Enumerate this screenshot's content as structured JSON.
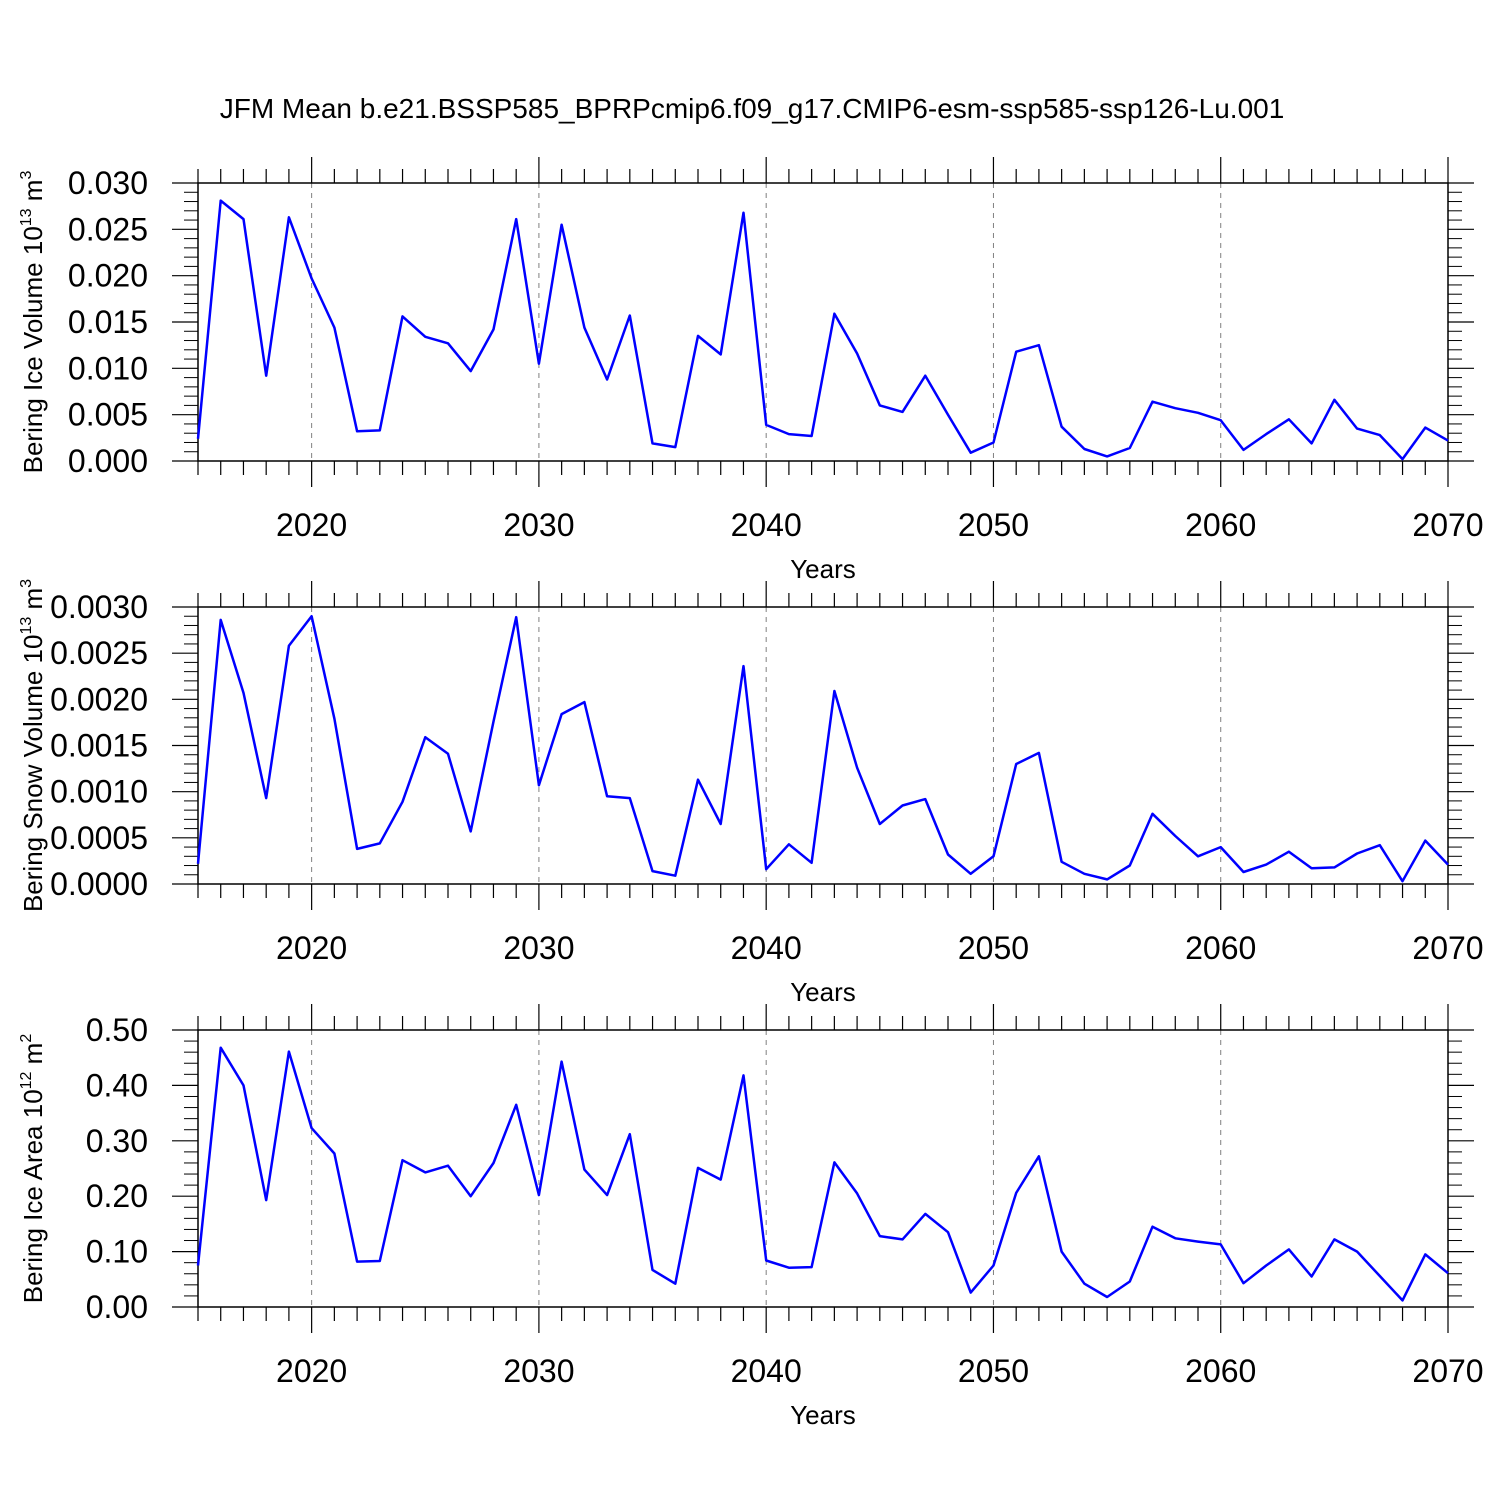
{
  "title": "JFM Mean b.e21.BSSP585_BPRPcmip6.f09_g17.CMIP6-esm-ssp585-ssp126-Lu.001",
  "colors": {
    "line": "#0000ff",
    "axis": "#000000",
    "grid": "#808080"
  },
  "chart_data": [
    {
      "type": "line",
      "title": "JFM Mean b.e21.BSSP585_BPRPcmip6.f09_g17.CMIP6-esm-ssp585-ssp126-Lu.001",
      "ylabel": {
        "main": "Bering Ice Volume 10",
        "sup": "13",
        "unit": " m",
        "unit_sup": "3"
      },
      "xlabel": "Years",
      "xlim": [
        2015,
        2070
      ],
      "ylim": [
        0,
        0.03
      ],
      "yticks": [
        "0.000",
        "0.005",
        "0.010",
        "0.015",
        "0.020",
        "0.025",
        "0.030"
      ],
      "xticks": [
        "2020",
        "2030",
        "2040",
        "2050",
        "2060",
        "2070"
      ],
      "grid": "vertical dashed at major x ticks",
      "x": [
        2015,
        2016,
        2017,
        2018,
        2019,
        2020,
        2021,
        2022,
        2023,
        2024,
        2025,
        2026,
        2027,
        2028,
        2029,
        2030,
        2031,
        2032,
        2033,
        2034,
        2035,
        2036,
        2037,
        2038,
        2039,
        2040,
        2041,
        2042,
        2043,
        2044,
        2045,
        2046,
        2047,
        2048,
        2049,
        2050,
        2051,
        2052,
        2053,
        2054,
        2055,
        2056,
        2057,
        2058,
        2059,
        2060,
        2061,
        2062,
        2063,
        2064,
        2065,
        2066,
        2067,
        2068,
        2069,
        2070
      ],
      "values": [
        0.0024,
        0.0281,
        0.0261,
        0.0092,
        0.0263,
        0.0197,
        0.0144,
        0.0032,
        0.0033,
        0.0156,
        0.0134,
        0.0127,
        0.0097,
        0.0142,
        0.0261,
        0.0105,
        0.0255,
        0.0144,
        0.0088,
        0.0157,
        0.0019,
        0.0015,
        0.0135,
        0.0115,
        0.0268,
        0.0039,
        0.0029,
        0.0027,
        0.0159,
        0.0116,
        0.006,
        0.0053,
        0.0092,
        0.005,
        0.0009,
        0.002,
        0.0118,
        0.0125,
        0.0037,
        0.0013,
        0.0005,
        0.0014,
        0.0064,
        0.0057,
        0.0052,
        0.0044,
        0.0012,
        0.0029,
        0.0045,
        0.0019,
        0.0066,
        0.0035,
        0.0028,
        0.0002,
        0.0036,
        0.0022
      ]
    },
    {
      "type": "line",
      "ylabel": {
        "main": "Bering Snow Volume 10",
        "sup": "13",
        "unit": " m",
        "unit_sup": "3"
      },
      "xlabel": "Years",
      "xlim": [
        2015,
        2070
      ],
      "ylim": [
        0,
        0.003
      ],
      "yticks": [
        "0.0000",
        "0.0005",
        "0.0010",
        "0.0015",
        "0.0020",
        "0.0025",
        "0.0030"
      ],
      "xticks": [
        "2020",
        "2030",
        "2040",
        "2050",
        "2060",
        "2070"
      ],
      "grid": "vertical dashed at major x ticks",
      "x": [
        2015,
        2016,
        2017,
        2018,
        2019,
        2020,
        2021,
        2022,
        2023,
        2024,
        2025,
        2026,
        2027,
        2028,
        2029,
        2030,
        2031,
        2032,
        2033,
        2034,
        2035,
        2036,
        2037,
        2038,
        2039,
        2040,
        2041,
        2042,
        2043,
        2044,
        2045,
        2046,
        2047,
        2048,
        2049,
        2050,
        2051,
        2052,
        2053,
        2054,
        2055,
        2056,
        2057,
        2058,
        2059,
        2060,
        2061,
        2062,
        2063,
        2064,
        2065,
        2066,
        2067,
        2068,
        2069,
        2070
      ],
      "values": [
        0.00022,
        0.00286,
        0.00207,
        0.00093,
        0.00258,
        0.0029,
        0.00179,
        0.00038,
        0.00044,
        0.00089,
        0.00159,
        0.00141,
        0.00057,
        0.00176,
        0.00289,
        0.00107,
        0.00184,
        0.00197,
        0.00095,
        0.00093,
        0.00014,
        9e-05,
        0.00113,
        0.00065,
        0.00236,
        0.00016,
        0.00043,
        0.00023,
        0.00209,
        0.00126,
        0.00065,
        0.00085,
        0.00092,
        0.00032,
        0.00011,
        0.0003,
        0.0013,
        0.00142,
        0.00024,
        0.00011,
        5e-05,
        0.0002,
        0.00076,
        0.00052,
        0.0003,
        0.0004,
        0.00013,
        0.00021,
        0.00035,
        0.00017,
        0.00018,
        0.00033,
        0.00042,
        3e-05,
        0.00047,
        0.00021
      ]
    },
    {
      "type": "line",
      "ylabel": {
        "main": "Bering Ice Area 10",
        "sup": "12",
        "unit": " m",
        "unit_sup": "2"
      },
      "xlabel": "Years",
      "xlim": [
        2015,
        2070
      ],
      "ylim": [
        0,
        0.5
      ],
      "yticks": [
        "0.00",
        "0.10",
        "0.20",
        "0.30",
        "0.40",
        "0.50"
      ],
      "xticks": [
        "2020",
        "2030",
        "2040",
        "2050",
        "2060",
        "2070"
      ],
      "grid": "vertical dashed at major x ticks",
      "x": [
        2015,
        2016,
        2017,
        2018,
        2019,
        2020,
        2021,
        2022,
        2023,
        2024,
        2025,
        2026,
        2027,
        2028,
        2029,
        2030,
        2031,
        2032,
        2033,
        2034,
        2035,
        2036,
        2037,
        2038,
        2039,
        2040,
        2041,
        2042,
        2043,
        2044,
        2045,
        2046,
        2047,
        2048,
        2049,
        2050,
        2051,
        2052,
        2053,
        2054,
        2055,
        2056,
        2057,
        2058,
        2059,
        2060,
        2061,
        2062,
        2063,
        2064,
        2065,
        2066,
        2067,
        2068,
        2069,
        2070
      ],
      "values": [
        0.075,
        0.468,
        0.4,
        0.193,
        0.461,
        0.323,
        0.277,
        0.082,
        0.083,
        0.265,
        0.243,
        0.255,
        0.2,
        0.26,
        0.365,
        0.202,
        0.443,
        0.248,
        0.202,
        0.312,
        0.067,
        0.042,
        0.251,
        0.23,
        0.418,
        0.084,
        0.071,
        0.072,
        0.261,
        0.205,
        0.128,
        0.122,
        0.168,
        0.135,
        0.026,
        0.075,
        0.206,
        0.272,
        0.1,
        0.042,
        0.018,
        0.046,
        0.145,
        0.124,
        0.118,
        0.113,
        0.043,
        0.075,
        0.104,
        0.055,
        0.122,
        0.1,
        0.056,
        0.012,
        0.095,
        0.061
      ]
    }
  ]
}
